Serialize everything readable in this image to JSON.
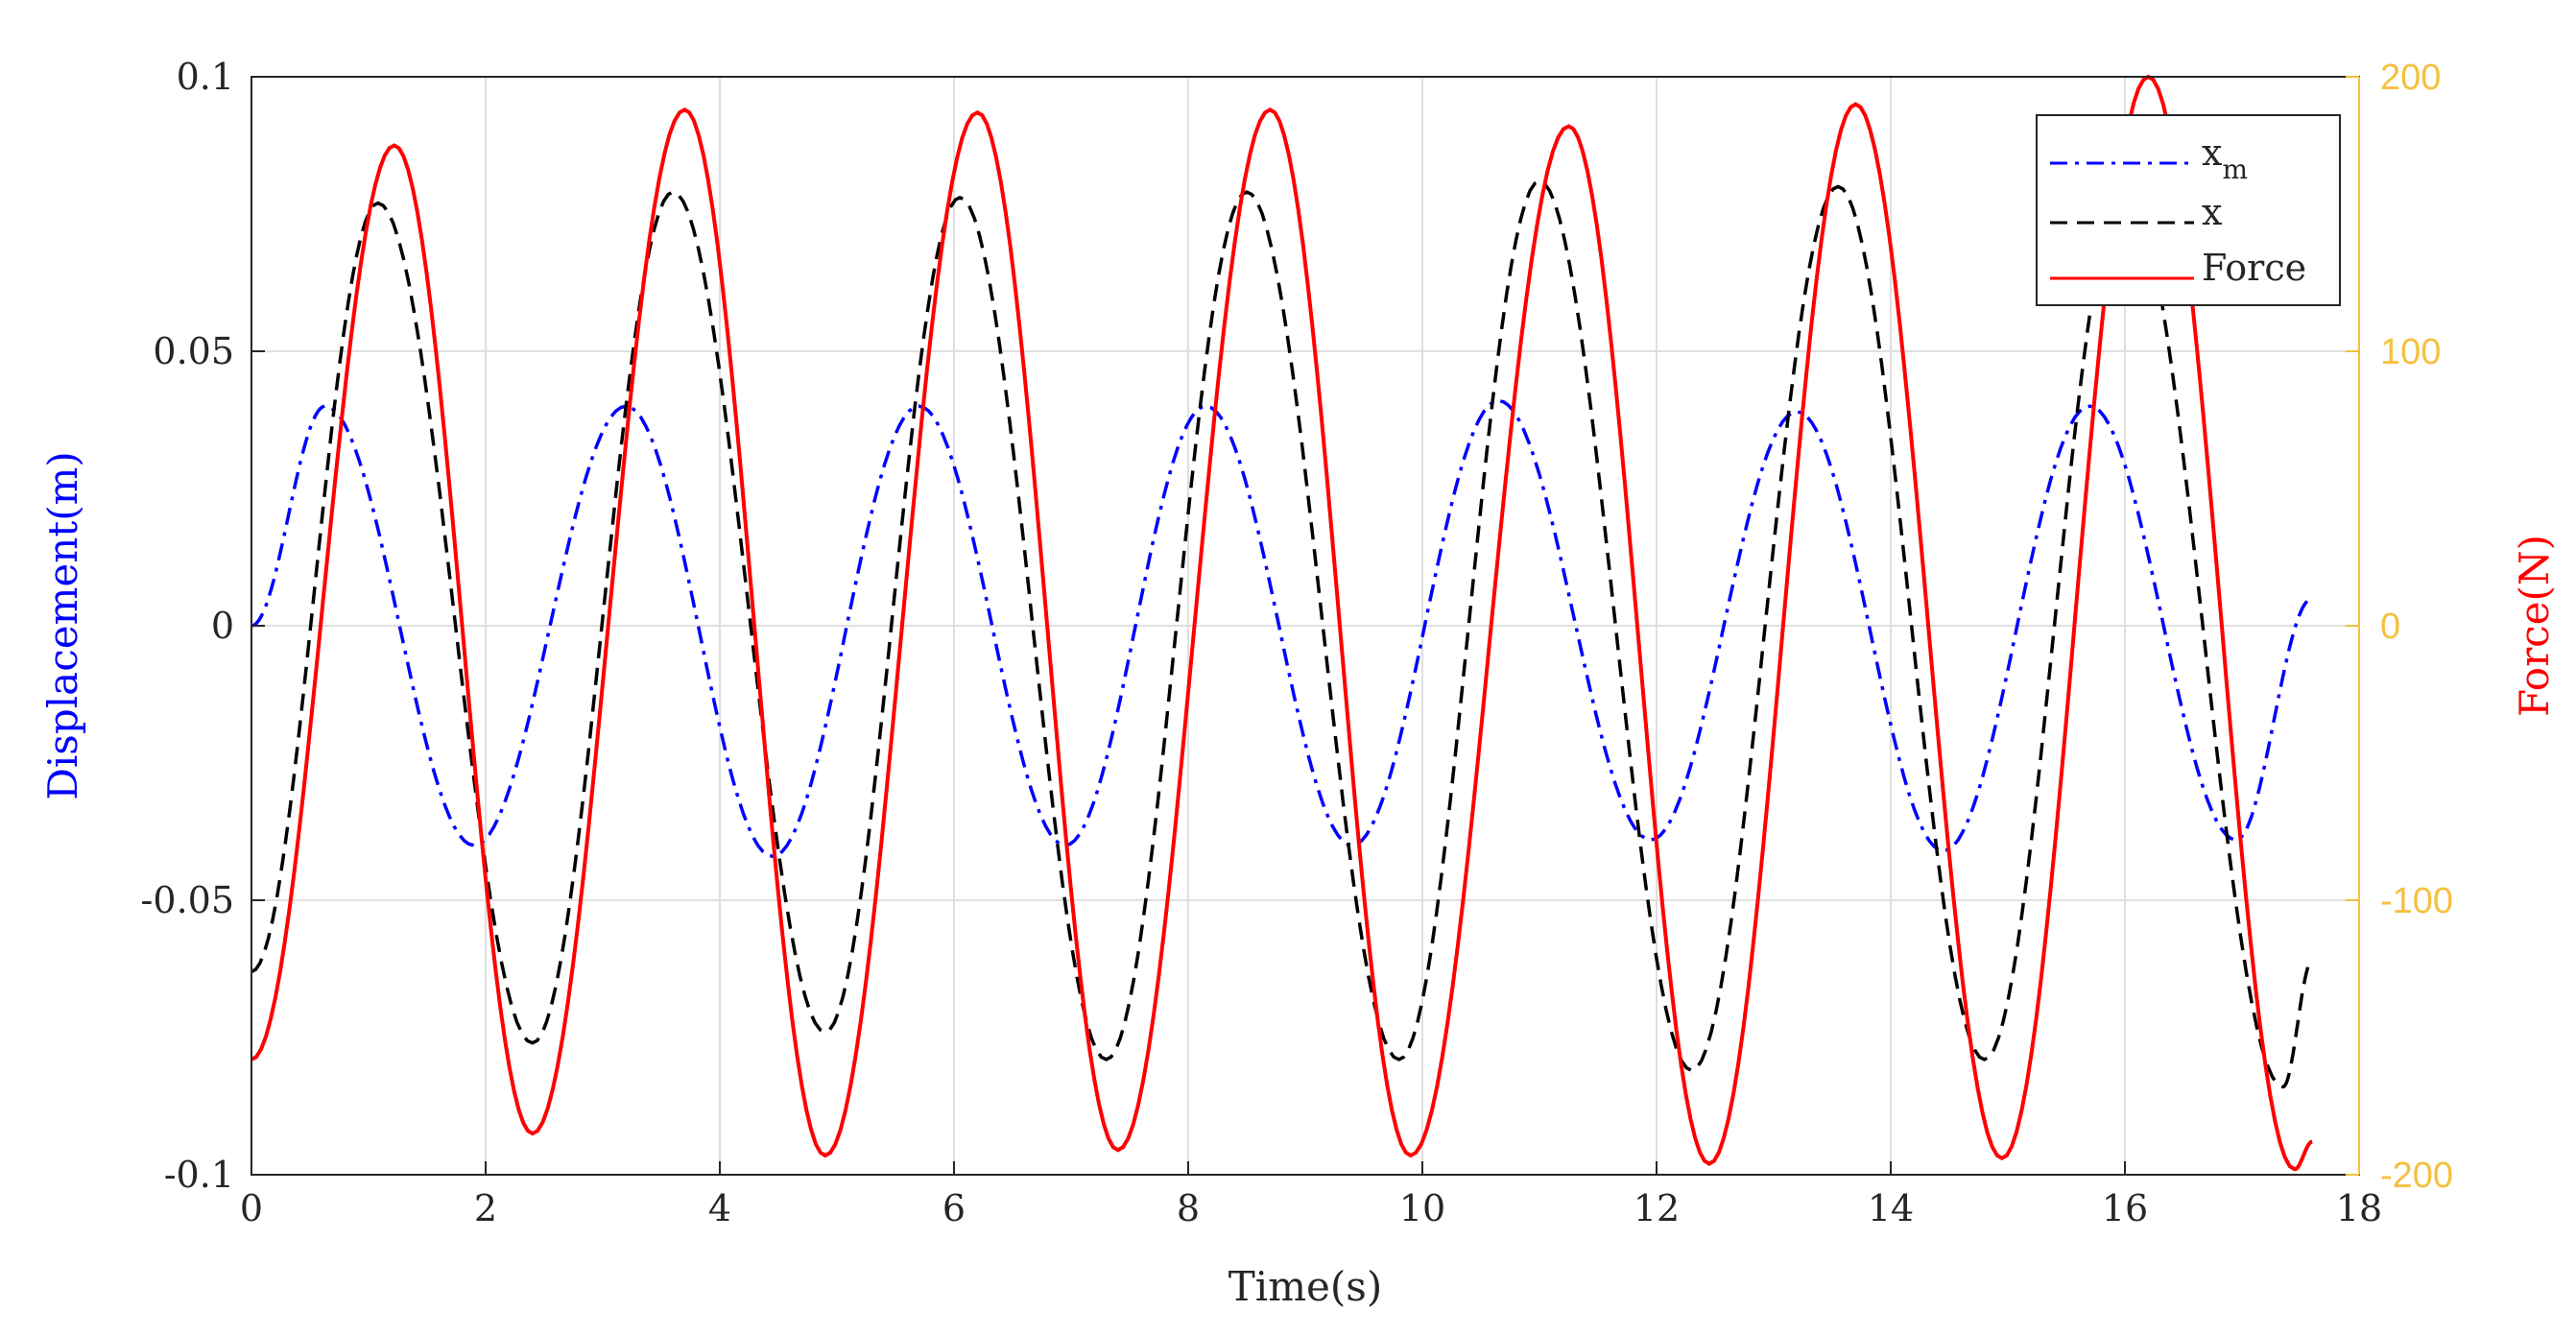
{
  "chart_data": {
    "type": "line",
    "xlabel": "Time(s)",
    "ylabel_left": "Displacement(m)",
    "ylabel_right": "Force(N)",
    "xlim": [
      0,
      18
    ],
    "ylim_left": [
      -0.1,
      0.1
    ],
    "ylim_right": [
      -200,
      200
    ],
    "x_ticks": [
      "0",
      "2",
      "4",
      "6",
      "8",
      "10",
      "12",
      "14",
      "16",
      "18"
    ],
    "y_ticks_left": [
      "0.1",
      "0.05",
      "0",
      "-0.05",
      "-0.1"
    ],
    "y_ticks_right": [
      "200",
      "100",
      "0",
      "-100",
      "-200"
    ],
    "grid": true,
    "legend_position": "top-right",
    "colors": {
      "xm": "#0000ff",
      "x": "#000000",
      "force": "#ff0000",
      "left_axis_label": "#0000ff",
      "right_axis_label": "#ff0000",
      "right_axis": "#f5c040"
    },
    "series": [
      {
        "key": "xm",
        "name": "x",
        "subscript": "m",
        "axis": "left",
        "style": "dash-dot",
        "x": [
          0,
          0.63,
          1.9,
          3.2,
          4.45,
          5.7,
          6.95,
          8.15,
          9.4,
          10.65,
          11.95,
          13.2,
          14.45,
          15.7,
          16.95,
          17.6
        ],
        "values": [
          0,
          0.04,
          -0.04,
          0.04,
          -0.042,
          0.04,
          -0.04,
          0.04,
          -0.04,
          0.041,
          -0.039,
          0.039,
          -0.041,
          0.04,
          -0.039,
          0.005
        ]
      },
      {
        "key": "x",
        "name": "x",
        "axis": "left",
        "style": "dashed",
        "x": [
          0,
          1.08,
          2.4,
          3.6,
          4.9,
          6.05,
          7.3,
          8.5,
          9.8,
          11.0,
          12.3,
          13.55,
          14.8,
          16.0,
          17.35,
          17.6
        ],
        "values": [
          -0.063,
          0.077,
          -0.076,
          0.079,
          -0.074,
          0.078,
          -0.079,
          0.079,
          -0.079,
          0.081,
          -0.081,
          0.08,
          -0.079,
          0.08,
          -0.084,
          -0.061
        ]
      },
      {
        "key": "force",
        "name": "Force",
        "axis": "right",
        "style": "solid",
        "x": [
          0,
          1.22,
          2.4,
          3.7,
          4.9,
          6.2,
          7.4,
          8.7,
          9.9,
          11.25,
          12.45,
          13.7,
          14.95,
          16.2,
          17.45,
          17.6
        ],
        "values": [
          -158,
          175,
          -185,
          188,
          -193,
          187,
          -191,
          188,
          -193,
          182,
          -196,
          190,
          -194,
          200,
          -198,
          -188
        ]
      }
    ]
  }
}
